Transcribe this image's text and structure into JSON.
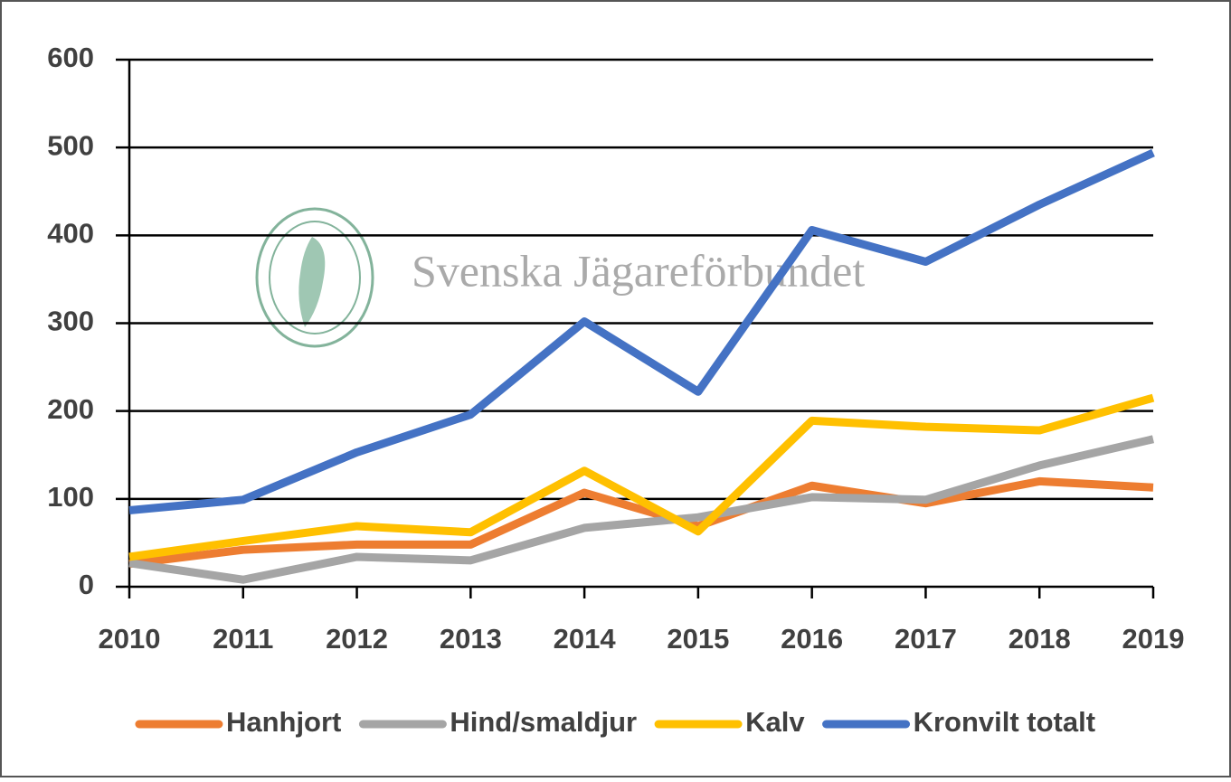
{
  "chart_data": {
    "type": "line",
    "watermark": "Svenska Jägareförbundet",
    "x": [
      2010,
      2011,
      2012,
      2013,
      2014,
      2015,
      2016,
      2017,
      2018,
      2019
    ],
    "series": [
      {
        "name": "Hanhjort",
        "color": "#ed7d31",
        "values": [
          26,
          42,
          48,
          48,
          107,
          69,
          115,
          95,
          120,
          113
        ]
      },
      {
        "name": "Hind/smaldjur",
        "color": "#a5a5a5",
        "values": [
          27,
          8,
          34,
          30,
          67,
          79,
          102,
          99,
          138,
          168
        ]
      },
      {
        "name": "Kalv",
        "color": "#ffc000",
        "values": [
          34,
          52,
          69,
          62,
          132,
          63,
          189,
          182,
          178,
          215
        ]
      },
      {
        "name": "Kronvilt totalt",
        "color": "#4472c4",
        "values": [
          87,
          99,
          153,
          196,
          302,
          222,
          406,
          370,
          435,
          494
        ]
      }
    ],
    "xlim": [
      2010,
      2019
    ],
    "xticks": [
      2010,
      2011,
      2012,
      2013,
      2014,
      2015,
      2016,
      2017,
      2018,
      2019
    ],
    "ylim": [
      0,
      600
    ],
    "yticks": [
      0,
      100,
      200,
      300,
      400,
      500,
      600
    ],
    "grid": true,
    "legend": "bottom"
  }
}
